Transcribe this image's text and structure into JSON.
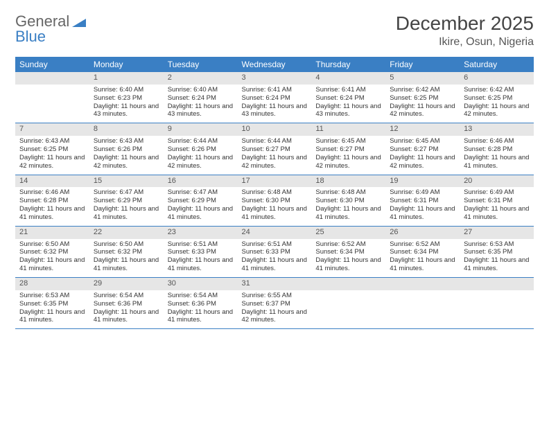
{
  "brand": {
    "part1": "General",
    "part2": "Blue"
  },
  "title": "December 2025",
  "location": "Ikire, Osun, Nigeria",
  "colors": {
    "header_bg": "#3a7fc4",
    "header_text": "#ffffff",
    "daynum_bg": "#e6e6e6",
    "row_divider": "#3a7fc4",
    "text": "#333333",
    "background": "#ffffff"
  },
  "day_headers": [
    "Sunday",
    "Monday",
    "Tuesday",
    "Wednesday",
    "Thursday",
    "Friday",
    "Saturday"
  ],
  "weeks": [
    [
      {
        "n": "",
        "sr": "",
        "ss": "",
        "dl": ""
      },
      {
        "n": "1",
        "sr": "Sunrise: 6:40 AM",
        "ss": "Sunset: 6:23 PM",
        "dl": "Daylight: 11 hours and 43 minutes."
      },
      {
        "n": "2",
        "sr": "Sunrise: 6:40 AM",
        "ss": "Sunset: 6:24 PM",
        "dl": "Daylight: 11 hours and 43 minutes."
      },
      {
        "n": "3",
        "sr": "Sunrise: 6:41 AM",
        "ss": "Sunset: 6:24 PM",
        "dl": "Daylight: 11 hours and 43 minutes."
      },
      {
        "n": "4",
        "sr": "Sunrise: 6:41 AM",
        "ss": "Sunset: 6:24 PM",
        "dl": "Daylight: 11 hours and 43 minutes."
      },
      {
        "n": "5",
        "sr": "Sunrise: 6:42 AM",
        "ss": "Sunset: 6:25 PM",
        "dl": "Daylight: 11 hours and 42 minutes."
      },
      {
        "n": "6",
        "sr": "Sunrise: 6:42 AM",
        "ss": "Sunset: 6:25 PM",
        "dl": "Daylight: 11 hours and 42 minutes."
      }
    ],
    [
      {
        "n": "7",
        "sr": "Sunrise: 6:43 AM",
        "ss": "Sunset: 6:25 PM",
        "dl": "Daylight: 11 hours and 42 minutes."
      },
      {
        "n": "8",
        "sr": "Sunrise: 6:43 AM",
        "ss": "Sunset: 6:26 PM",
        "dl": "Daylight: 11 hours and 42 minutes."
      },
      {
        "n": "9",
        "sr": "Sunrise: 6:44 AM",
        "ss": "Sunset: 6:26 PM",
        "dl": "Daylight: 11 hours and 42 minutes."
      },
      {
        "n": "10",
        "sr": "Sunrise: 6:44 AM",
        "ss": "Sunset: 6:27 PM",
        "dl": "Daylight: 11 hours and 42 minutes."
      },
      {
        "n": "11",
        "sr": "Sunrise: 6:45 AM",
        "ss": "Sunset: 6:27 PM",
        "dl": "Daylight: 11 hours and 42 minutes."
      },
      {
        "n": "12",
        "sr": "Sunrise: 6:45 AM",
        "ss": "Sunset: 6:27 PM",
        "dl": "Daylight: 11 hours and 42 minutes."
      },
      {
        "n": "13",
        "sr": "Sunrise: 6:46 AM",
        "ss": "Sunset: 6:28 PM",
        "dl": "Daylight: 11 hours and 41 minutes."
      }
    ],
    [
      {
        "n": "14",
        "sr": "Sunrise: 6:46 AM",
        "ss": "Sunset: 6:28 PM",
        "dl": "Daylight: 11 hours and 41 minutes."
      },
      {
        "n": "15",
        "sr": "Sunrise: 6:47 AM",
        "ss": "Sunset: 6:29 PM",
        "dl": "Daylight: 11 hours and 41 minutes."
      },
      {
        "n": "16",
        "sr": "Sunrise: 6:47 AM",
        "ss": "Sunset: 6:29 PM",
        "dl": "Daylight: 11 hours and 41 minutes."
      },
      {
        "n": "17",
        "sr": "Sunrise: 6:48 AM",
        "ss": "Sunset: 6:30 PM",
        "dl": "Daylight: 11 hours and 41 minutes."
      },
      {
        "n": "18",
        "sr": "Sunrise: 6:48 AM",
        "ss": "Sunset: 6:30 PM",
        "dl": "Daylight: 11 hours and 41 minutes."
      },
      {
        "n": "19",
        "sr": "Sunrise: 6:49 AM",
        "ss": "Sunset: 6:31 PM",
        "dl": "Daylight: 11 hours and 41 minutes."
      },
      {
        "n": "20",
        "sr": "Sunrise: 6:49 AM",
        "ss": "Sunset: 6:31 PM",
        "dl": "Daylight: 11 hours and 41 minutes."
      }
    ],
    [
      {
        "n": "21",
        "sr": "Sunrise: 6:50 AM",
        "ss": "Sunset: 6:32 PM",
        "dl": "Daylight: 11 hours and 41 minutes."
      },
      {
        "n": "22",
        "sr": "Sunrise: 6:50 AM",
        "ss": "Sunset: 6:32 PM",
        "dl": "Daylight: 11 hours and 41 minutes."
      },
      {
        "n": "23",
        "sr": "Sunrise: 6:51 AM",
        "ss": "Sunset: 6:33 PM",
        "dl": "Daylight: 11 hours and 41 minutes."
      },
      {
        "n": "24",
        "sr": "Sunrise: 6:51 AM",
        "ss": "Sunset: 6:33 PM",
        "dl": "Daylight: 11 hours and 41 minutes."
      },
      {
        "n": "25",
        "sr": "Sunrise: 6:52 AM",
        "ss": "Sunset: 6:34 PM",
        "dl": "Daylight: 11 hours and 41 minutes."
      },
      {
        "n": "26",
        "sr": "Sunrise: 6:52 AM",
        "ss": "Sunset: 6:34 PM",
        "dl": "Daylight: 11 hours and 41 minutes."
      },
      {
        "n": "27",
        "sr": "Sunrise: 6:53 AM",
        "ss": "Sunset: 6:35 PM",
        "dl": "Daylight: 11 hours and 41 minutes."
      }
    ],
    [
      {
        "n": "28",
        "sr": "Sunrise: 6:53 AM",
        "ss": "Sunset: 6:35 PM",
        "dl": "Daylight: 11 hours and 41 minutes."
      },
      {
        "n": "29",
        "sr": "Sunrise: 6:54 AM",
        "ss": "Sunset: 6:36 PM",
        "dl": "Daylight: 11 hours and 41 minutes."
      },
      {
        "n": "30",
        "sr": "Sunrise: 6:54 AM",
        "ss": "Sunset: 6:36 PM",
        "dl": "Daylight: 11 hours and 41 minutes."
      },
      {
        "n": "31",
        "sr": "Sunrise: 6:55 AM",
        "ss": "Sunset: 6:37 PM",
        "dl": "Daylight: 11 hours and 42 minutes."
      },
      {
        "n": "",
        "sr": "",
        "ss": "",
        "dl": ""
      },
      {
        "n": "",
        "sr": "",
        "ss": "",
        "dl": ""
      },
      {
        "n": "",
        "sr": "",
        "ss": "",
        "dl": ""
      }
    ]
  ]
}
